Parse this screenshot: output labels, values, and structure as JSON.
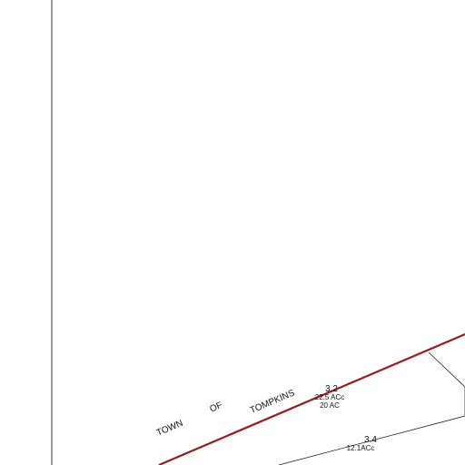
{
  "boundary_labels": [
    "TOWN",
    "OF",
    "TOMPKINS"
  ],
  "parcels": [
    {
      "id": "3.2",
      "lines": [
        "22.5 ACc",
        "20 AC"
      ]
    },
    {
      "id": "3.4",
      "lines": [
        "12.1ACc"
      ]
    }
  ]
}
